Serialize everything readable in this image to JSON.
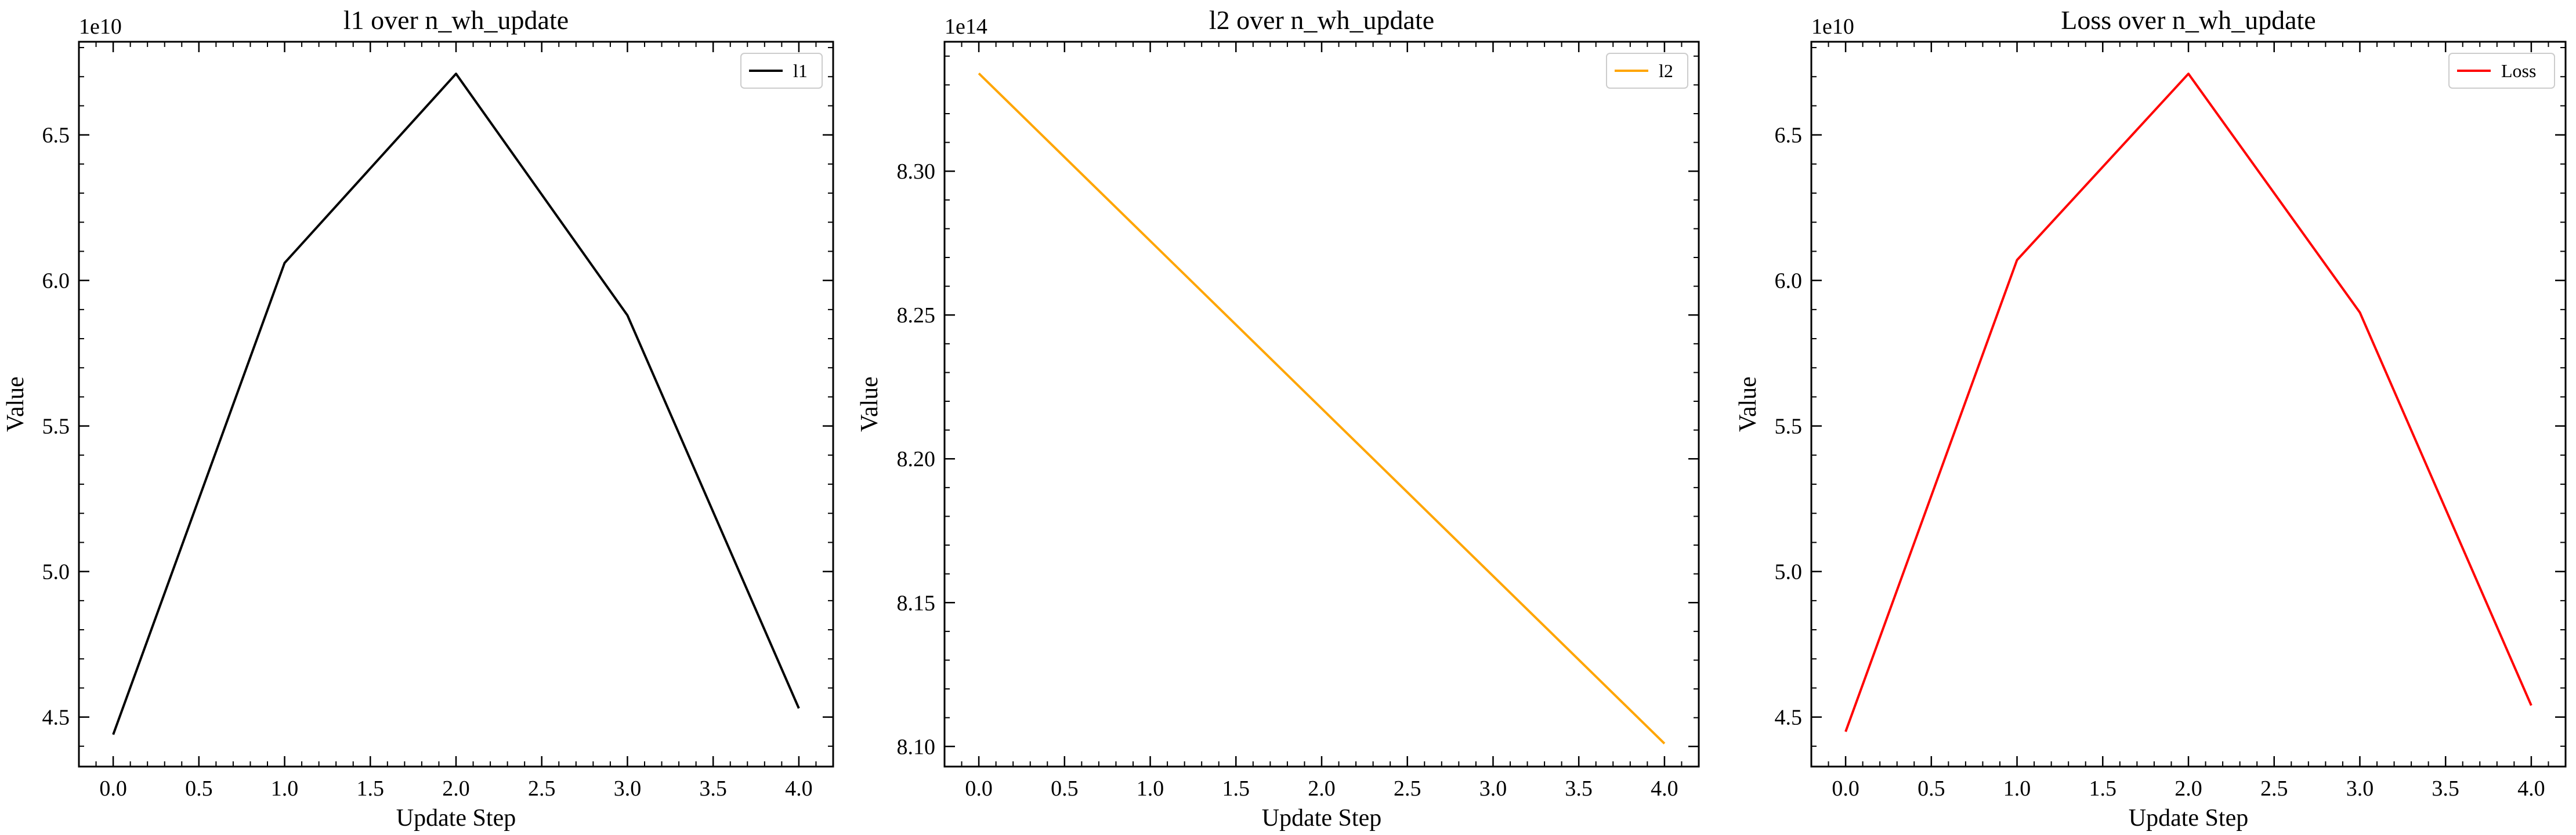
{
  "chart_data": [
    {
      "type": "line",
      "title": "l1 over n_wh_update",
      "xlabel": "Update Step",
      "ylabel": "Value",
      "y_offset_label": "1e10",
      "xlim": [
        -0.2,
        4.2
      ],
      "ylim": [
        4.33,
        6.82
      ],
      "x_ticks": [
        0.0,
        0.5,
        1.0,
        1.5,
        2.0,
        2.5,
        3.0,
        3.5,
        4.0
      ],
      "x_tick_labels": [
        "0.0",
        "0.5",
        "1.0",
        "1.5",
        "2.0",
        "2.5",
        "3.0",
        "3.5",
        "4.0"
      ],
      "y_ticks": [
        4.5,
        5.0,
        5.5,
        6.0,
        6.5
      ],
      "y_tick_labels": [
        "4.5",
        "5.0",
        "5.5",
        "6.0",
        "6.5"
      ],
      "legend_position": "top-right",
      "grid": false,
      "series": [
        {
          "name": "l1",
          "color": "#000000",
          "x": [
            0,
            1,
            2,
            3,
            4
          ],
          "y": [
            4.44,
            6.06,
            6.71,
            5.88,
            4.53
          ]
        }
      ]
    },
    {
      "type": "line",
      "title": "l2 over n_wh_update",
      "xlabel": "Update Step",
      "ylabel": "Value",
      "y_offset_label": "1e14",
      "xlim": [
        -0.2,
        4.2
      ],
      "ylim": [
        8.093,
        8.345
      ],
      "x_ticks": [
        0.0,
        0.5,
        1.0,
        1.5,
        2.0,
        2.5,
        3.0,
        3.5,
        4.0
      ],
      "x_tick_labels": [
        "0.0",
        "0.5",
        "1.0",
        "1.5",
        "2.0",
        "2.5",
        "3.0",
        "3.5",
        "4.0"
      ],
      "y_ticks": [
        8.1,
        8.15,
        8.2,
        8.25,
        8.3
      ],
      "y_tick_labels": [
        "8.10",
        "8.15",
        "8.20",
        "8.25",
        "8.30"
      ],
      "legend_position": "top-right",
      "grid": false,
      "series": [
        {
          "name": "l2",
          "color": "#FFA500",
          "x": [
            0,
            4
          ],
          "y": [
            8.334,
            8.101
          ]
        }
      ]
    },
    {
      "type": "line",
      "title": "Loss over n_wh_update",
      "xlabel": "Update Step",
      "ylabel": "Value",
      "y_offset_label": "1e10",
      "xlim": [
        -0.2,
        4.2
      ],
      "ylim": [
        4.33,
        6.82
      ],
      "x_ticks": [
        0.0,
        0.5,
        1.0,
        1.5,
        2.0,
        2.5,
        3.0,
        3.5,
        4.0
      ],
      "x_tick_labels": [
        "0.0",
        "0.5",
        "1.0",
        "1.5",
        "2.0",
        "2.5",
        "3.0",
        "3.5",
        "4.0"
      ],
      "y_ticks": [
        4.5,
        5.0,
        5.5,
        6.0,
        6.5
      ],
      "y_tick_labels": [
        "4.5",
        "5.0",
        "5.5",
        "6.0",
        "6.5"
      ],
      "legend_position": "top-right",
      "grid": false,
      "series": [
        {
          "name": "Loss",
          "color": "#FF0000",
          "x": [
            0,
            1,
            2,
            3,
            4
          ],
          "y": [
            4.45,
            6.07,
            6.71,
            5.89,
            4.54
          ]
        }
      ]
    }
  ]
}
